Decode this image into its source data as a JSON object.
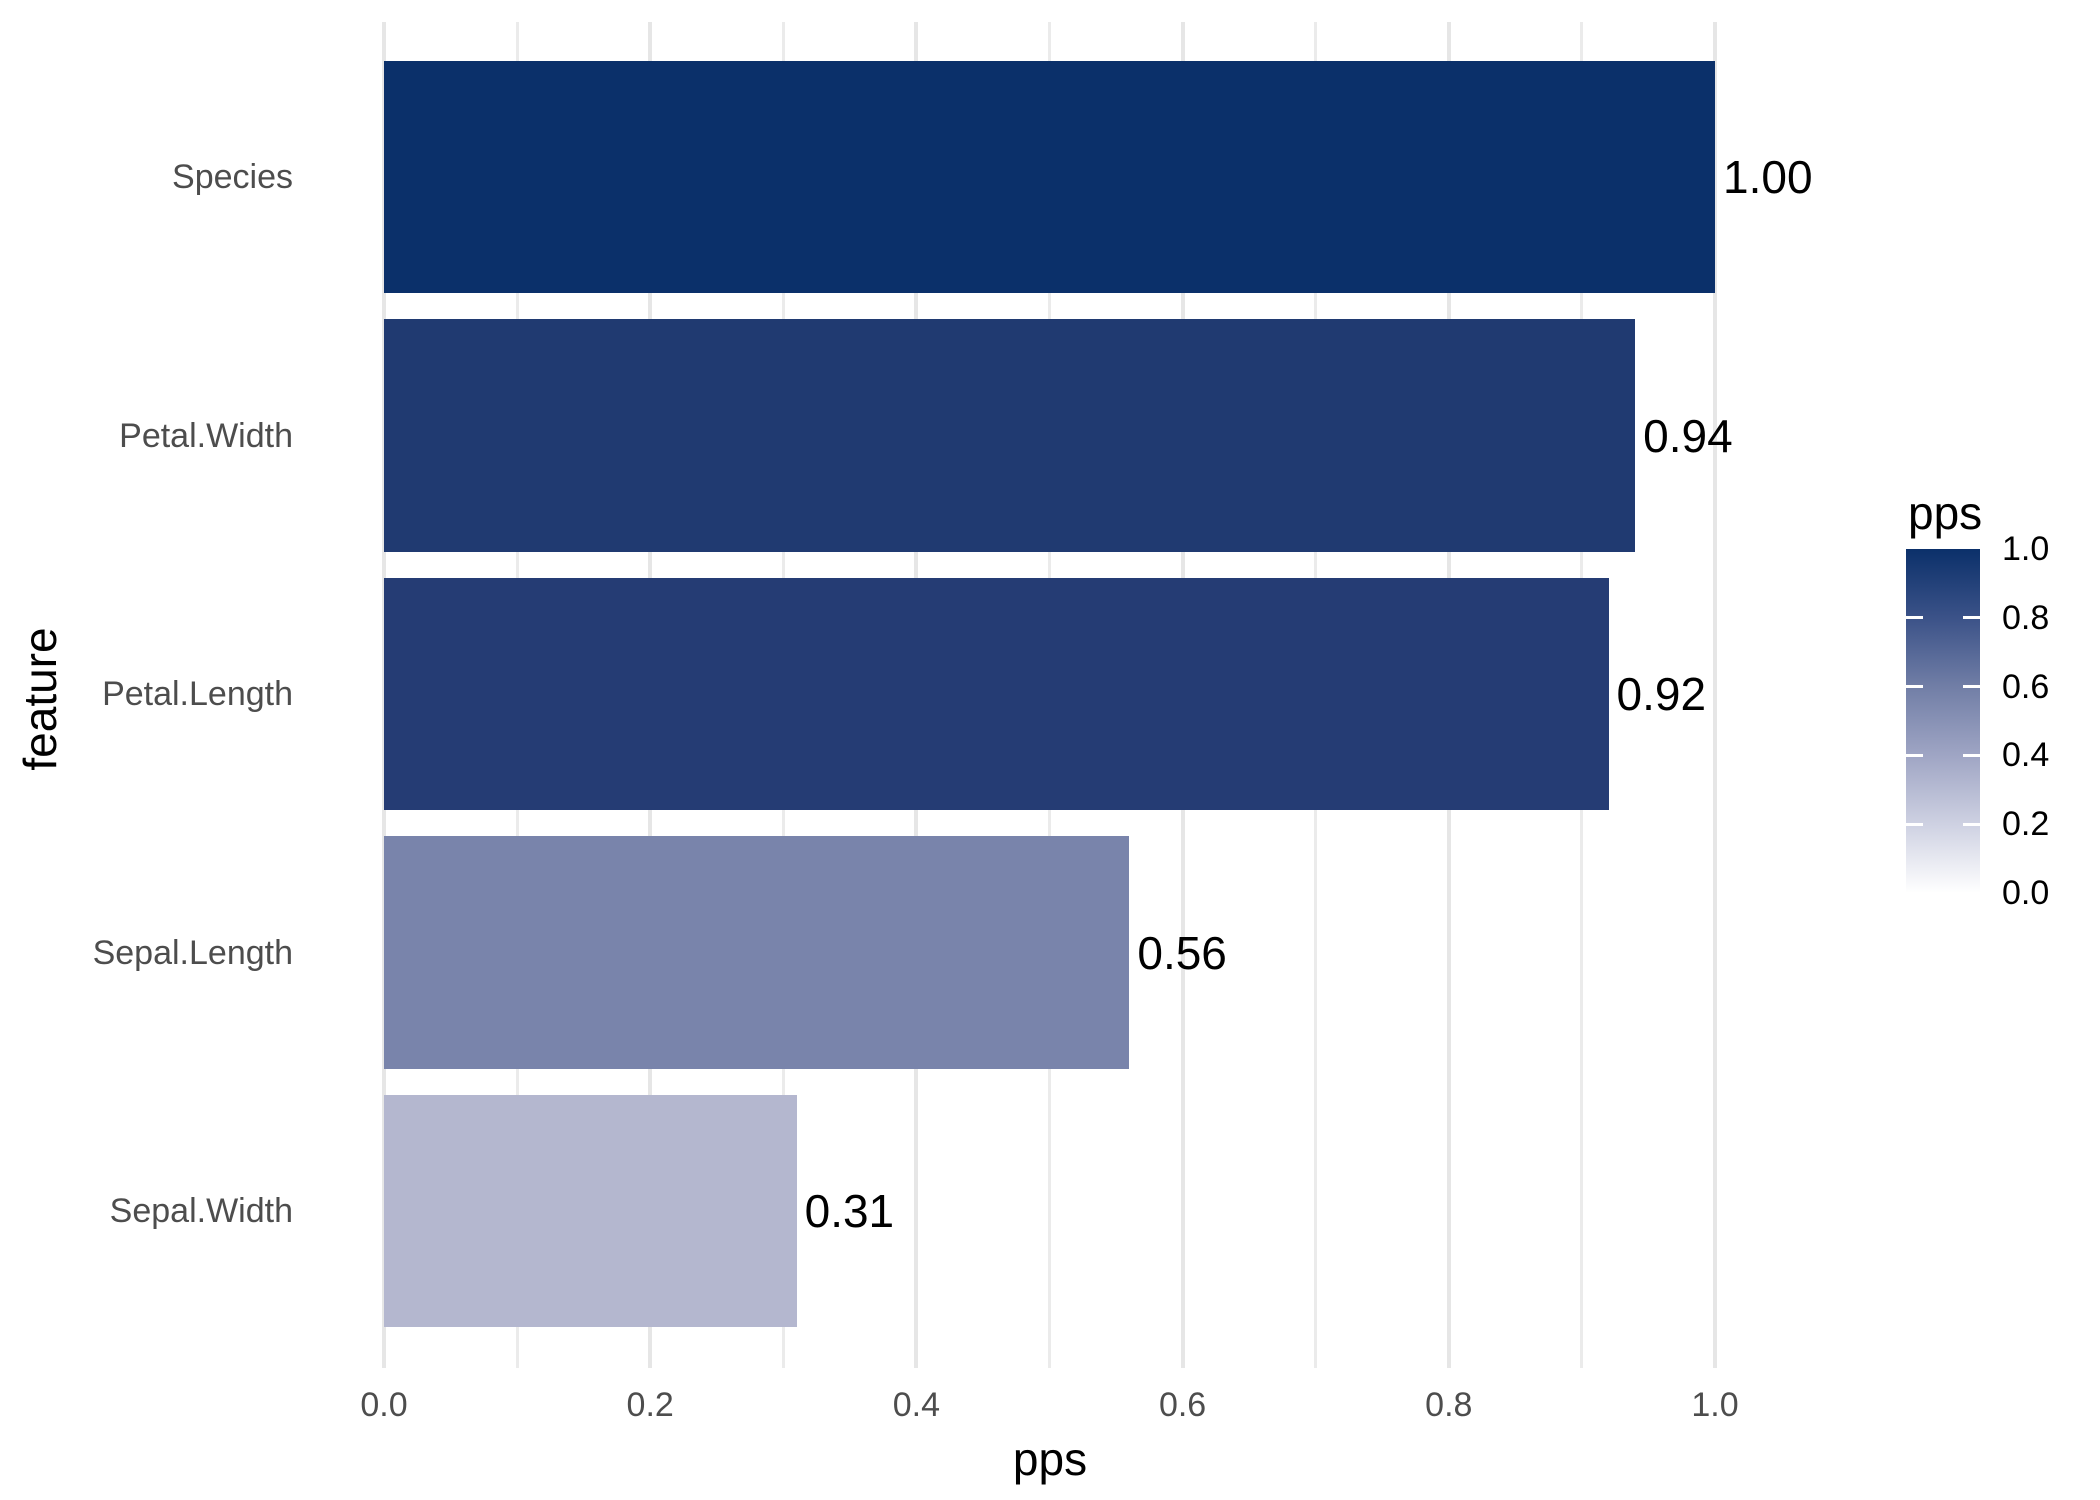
{
  "chart_data": {
    "type": "bar",
    "orientation": "horizontal",
    "title": "",
    "xlabel": "pps",
    "ylabel": "feature",
    "categories": [
      "Species",
      "Petal.Width",
      "Petal.Length",
      "Sepal.Length",
      "Sepal.Width"
    ],
    "values": [
      1.0,
      0.94,
      0.92,
      0.56,
      0.31
    ],
    "value_labels": [
      "1.00",
      "0.94",
      "0.92",
      "0.56",
      "0.31"
    ],
    "bar_colors": [
      "#0B306A",
      "#203A71",
      "#253C74",
      "#7984AB",
      "#B4B7CF"
    ],
    "x_ticks": [
      0.0,
      0.2,
      0.4,
      0.6,
      0.8,
      1.0
    ],
    "x_tick_labels": [
      "0.0",
      "0.2",
      "0.4",
      "0.6",
      "0.8",
      "1.0"
    ],
    "x_minor_ticks": [
      0.1,
      0.3,
      0.5,
      0.7,
      0.9
    ],
    "xlim": [
      -0.05,
      1.05
    ],
    "grid": "vertical-only",
    "colors": {
      "grid_major": "#e6e6e6",
      "grid_minor": "#ebebeb",
      "tick_label": "#4d4d4d",
      "text": "#000000",
      "background": "#ffffff"
    },
    "legend": {
      "title": "pps",
      "position": "right",
      "tick_values": [
        1.0,
        0.8,
        0.6,
        0.4,
        0.2,
        0.0
      ],
      "tick_labels": [
        "1.0",
        "0.8",
        "0.6",
        "0.4",
        "0.2",
        "0.0"
      ],
      "inner_tick_values": [
        0.8,
        0.6,
        0.4,
        0.2
      ],
      "gradient_high": "#0B306A",
      "gradient_low": "#FFFFFF",
      "gradient_stops": [
        "#0B306A",
        "#3B5288",
        "#717EA6",
        "#9FA5C4",
        "#CED1E2",
        "#FFFFFF"
      ]
    }
  }
}
